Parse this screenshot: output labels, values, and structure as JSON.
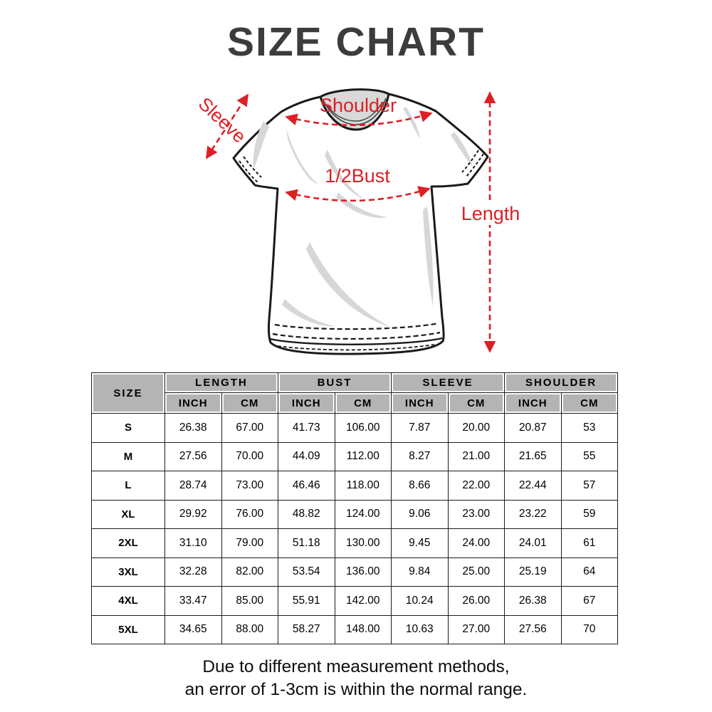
{
  "title": "SIZE CHART",
  "diagram": {
    "sleeve_label": "Sleeve",
    "shoulder_label": "Shoulder",
    "bust_label": "1/2Bust",
    "length_label": "Length",
    "accent_color": "#dd1f26",
    "shirt_outline_color": "#1a1a1a",
    "shirt_shade_color": "#d7d7d7"
  },
  "chart_data": {
    "type": "table",
    "title": "SIZE CHART",
    "size_column_header": "SIZE",
    "groups": [
      "LENGTH",
      "BUST",
      "SLEEVE",
      "SHOULDER"
    ],
    "unit_headers": [
      "INCH",
      "CM",
      "INCH",
      "CM",
      "INCH",
      "CM",
      "INCH",
      "CM"
    ],
    "columns": [
      "SIZE",
      "LENGTH INCH",
      "LENGTH CM",
      "BUST INCH",
      "BUST CM",
      "SLEEVE INCH",
      "SLEEVE CM",
      "SHOULDER INCH",
      "SHOULDER CM"
    ],
    "header_bg": "#b4b4b4",
    "rows": [
      {
        "size": "S",
        "values": [
          "26.38",
          "67.00",
          "41.73",
          "106.00",
          "7.87",
          "20.00",
          "20.87",
          "53"
        ]
      },
      {
        "size": "M",
        "values": [
          "27.56",
          "70.00",
          "44.09",
          "112.00",
          "8.27",
          "21.00",
          "21.65",
          "55"
        ]
      },
      {
        "size": "L",
        "values": [
          "28.74",
          "73.00",
          "46.46",
          "118.00",
          "8.66",
          "22.00",
          "22.44",
          "57"
        ]
      },
      {
        "size": "XL",
        "values": [
          "29.92",
          "76.00",
          "48.82",
          "124.00",
          "9.06",
          "23.00",
          "23.22",
          "59"
        ]
      },
      {
        "size": "2XL",
        "values": [
          "31.10",
          "79.00",
          "51.18",
          "130.00",
          "9.45",
          "24.00",
          "24.01",
          "61"
        ]
      },
      {
        "size": "3XL",
        "values": [
          "32.28",
          "82.00",
          "53.54",
          "136.00",
          "9.84",
          "25.00",
          "25.19",
          "64"
        ]
      },
      {
        "size": "4XL",
        "values": [
          "33.47",
          "85.00",
          "55.91",
          "142.00",
          "10.24",
          "26.00",
          "26.38",
          "67"
        ]
      },
      {
        "size": "5XL",
        "values": [
          "34.65",
          "88.00",
          "58.27",
          "148.00",
          "10.63",
          "27.00",
          "27.56",
          "70"
        ]
      }
    ]
  },
  "footer": {
    "line1": "Due to different measurement methods,",
    "line2": "an error of 1-3cm is within the normal range."
  }
}
